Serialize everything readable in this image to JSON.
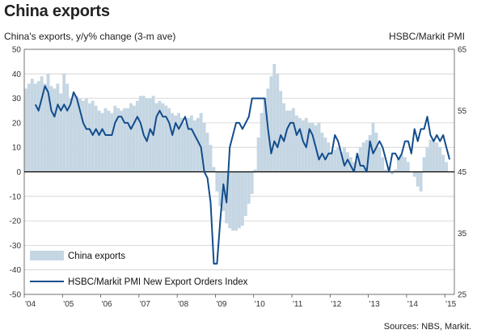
{
  "header": {
    "title": "China exports",
    "left_axis_label": "China's exports, y/y% change (3-m  ave)",
    "right_axis_label": "HSBC/Markit PMI",
    "source": "Sources: NBS, Markit."
  },
  "colors": {
    "bars": "#c5d6e3",
    "line": "#134d8c",
    "zero_line": "#000000",
    "grid": "#cfcfcf"
  },
  "chart_data": {
    "type": "bar+line",
    "x_range": [
      2004.0,
      2015.25
    ],
    "x_ticks": [
      "'04",
      "'05",
      "'06",
      "'07",
      "'08",
      "'09",
      "'10",
      "'11",
      "'12",
      "'13",
      "'14",
      "'15"
    ],
    "left_axis": {
      "range": [
        -50,
        50
      ],
      "ticks": [
        "50",
        "40",
        "30",
        "20",
        "10",
        "0",
        "-10",
        "-20",
        "-30",
        "-40",
        "-50"
      ]
    },
    "right_axis": {
      "range": [
        25,
        65
      ],
      "ticks": [
        "65",
        "55",
        "45",
        "35",
        "25"
      ]
    },
    "legend": {
      "bars": "China exports",
      "line": "HSBC/Markit PMI New Export Orders Index",
      "position": "bottom-left"
    },
    "series": [
      {
        "name": "China exports",
        "axis": "left",
        "kind": "bar",
        "x": [
          2004.0,
          2004.0833,
          2004.1667,
          2004.25,
          2004.3333,
          2004.4167,
          2004.5,
          2004.5833,
          2004.6667,
          2004.75,
          2004.8333,
          2004.9167,
          2005.0,
          2005.0833,
          2005.1667,
          2005.25,
          2005.3333,
          2005.4167,
          2005.5,
          2005.5833,
          2005.6667,
          2005.75,
          2005.8333,
          2005.9167,
          2006.0,
          2006.0833,
          2006.1667,
          2006.25,
          2006.3333,
          2006.4167,
          2006.5,
          2006.5833,
          2006.6667,
          2006.75,
          2006.8333,
          2006.9167,
          2007.0,
          2007.0833,
          2007.1667,
          2007.25,
          2007.3333,
          2007.4167,
          2007.5,
          2007.5833,
          2007.6667,
          2007.75,
          2007.8333,
          2007.9167,
          2008.0,
          2008.0833,
          2008.1667,
          2008.25,
          2008.3333,
          2008.4167,
          2008.5,
          2008.5833,
          2008.6667,
          2008.75,
          2008.8333,
          2008.9167,
          2009.0,
          2009.0833,
          2009.1667,
          2009.25,
          2009.3333,
          2009.4167,
          2009.5,
          2009.5833,
          2009.6667,
          2009.75,
          2009.8333,
          2009.9167,
          2010.0,
          2010.0833,
          2010.1667,
          2010.25,
          2010.3333,
          2010.4167,
          2010.5,
          2010.5833,
          2010.6667,
          2010.75,
          2010.8333,
          2010.9167,
          2011.0,
          2011.0833,
          2011.1667,
          2011.25,
          2011.3333,
          2011.4167,
          2011.5,
          2011.5833,
          2011.6667,
          2011.75,
          2011.8333,
          2011.9167,
          2012.0,
          2012.0833,
          2012.1667,
          2012.25,
          2012.3333,
          2012.4167,
          2012.5,
          2012.5833,
          2012.6667,
          2012.75,
          2012.8333,
          2012.9167,
          2013.0,
          2013.0833,
          2013.1667,
          2013.25,
          2013.3333,
          2013.4167,
          2013.5,
          2013.5833,
          2013.6667,
          2013.75,
          2013.8333,
          2013.9167,
          2014.0,
          2014.0833,
          2014.1667,
          2014.25,
          2014.3333,
          2014.4167,
          2014.5,
          2014.5833,
          2014.6667,
          2014.75,
          2014.8333,
          2014.9167,
          2015.0
        ],
        "values": [
          34,
          36,
          38,
          36,
          37,
          39,
          36,
          40,
          35,
          34,
          36,
          32,
          40,
          36,
          30,
          32,
          31,
          30,
          29,
          30,
          28,
          29,
          27,
          25,
          24,
          26,
          25,
          24,
          27,
          26,
          25,
          26,
          26,
          28,
          27,
          29,
          31,
          31,
          30,
          30,
          31,
          28,
          29,
          28,
          27,
          26,
          24,
          23,
          24,
          22,
          20,
          22,
          23,
          21,
          22,
          24,
          20,
          16,
          11,
          2,
          -8,
          -14,
          -16,
          -21,
          -23,
          -24,
          -24,
          -23,
          -22,
          -18,
          -13,
          -9,
          1,
          14,
          24,
          30,
          34,
          39,
          44,
          40,
          33,
          28,
          25,
          25,
          26,
          23,
          22,
          21,
          22,
          20,
          20,
          19,
          20,
          16,
          14,
          12,
          8,
          9,
          10,
          8,
          10,
          8,
          6,
          4,
          6,
          10,
          12,
          13,
          15,
          20,
          16,
          10,
          6,
          1,
          0,
          -1,
          1,
          6,
          7,
          6,
          4,
          0,
          -2,
          -6,
          -8,
          6,
          10,
          13,
          13,
          12,
          10,
          7,
          4
        ]
      },
      {
        "name": "HSBC/Markit PMI New Export Orders Index",
        "axis": "right",
        "kind": "line",
        "x": [
          2004.25,
          2004.3333,
          2004.4167,
          2004.5,
          2004.5833,
          2004.6667,
          2004.75,
          2004.8333,
          2004.9167,
          2005.0,
          2005.0833,
          2005.1667,
          2005.25,
          2005.3333,
          2005.4167,
          2005.5,
          2005.5833,
          2005.6667,
          2005.75,
          2005.8333,
          2005.9167,
          2006.0,
          2006.0833,
          2006.1667,
          2006.25,
          2006.3333,
          2006.4167,
          2006.5,
          2006.5833,
          2006.6667,
          2006.75,
          2006.8333,
          2006.9167,
          2007.0,
          2007.0833,
          2007.1667,
          2007.25,
          2007.3333,
          2007.4167,
          2007.5,
          2007.5833,
          2007.6667,
          2007.75,
          2007.8333,
          2007.9167,
          2008.0,
          2008.0833,
          2008.1667,
          2008.25,
          2008.3333,
          2008.4167,
          2008.5,
          2008.5833,
          2008.6667,
          2008.75,
          2008.8333,
          2008.9167,
          2009.0,
          2009.0833,
          2009.1667,
          2009.25,
          2009.3333,
          2009.4167,
          2009.5,
          2009.5833,
          2009.6667,
          2009.75,
          2009.8333,
          2009.9167,
          2010.0,
          2010.0833,
          2010.1667,
          2010.25,
          2010.3333,
          2010.4167,
          2010.5,
          2010.5833,
          2010.6667,
          2010.75,
          2010.8333,
          2010.9167,
          2011.0,
          2011.0833,
          2011.1667,
          2011.25,
          2011.3333,
          2011.4167,
          2011.5,
          2011.5833,
          2011.6667,
          2011.75,
          2011.8333,
          2011.9167,
          2012.0,
          2012.0833,
          2012.1667,
          2012.25,
          2012.3333,
          2012.4167,
          2012.5,
          2012.5833,
          2012.6667,
          2012.75,
          2012.8333,
          2012.9167,
          2013.0,
          2013.0833,
          2013.1667,
          2013.25,
          2013.3333,
          2013.4167,
          2013.5,
          2013.5833,
          2013.6667,
          2013.75,
          2013.8333,
          2013.9167,
          2014.0,
          2014.0833,
          2014.1667,
          2014.25,
          2014.3333,
          2014.4167,
          2014.5,
          2014.5833,
          2014.6667,
          2014.75,
          2014.8333,
          2014.9167,
          2015.0,
          2015.0833
        ],
        "values": [
          56,
          55,
          57,
          59,
          58,
          55,
          54,
          56,
          55,
          56,
          55,
          56,
          58,
          57,
          55,
          53,
          52,
          52,
          51,
          52,
          51,
          52,
          51,
          51,
          51,
          53,
          54,
          54,
          53,
          53,
          52,
          53,
          54,
          53,
          51,
          50,
          52,
          51,
          54,
          55,
          54,
          54,
          53,
          51,
          53,
          52,
          53,
          54,
          52,
          52,
          51,
          50,
          49,
          45,
          44,
          40,
          30,
          30,
          37,
          43,
          40,
          49,
          51,
          53,
          53,
          52,
          53,
          54,
          57,
          57,
          57,
          57,
          57,
          52,
          48,
          50,
          49,
          51,
          50,
          52,
          53,
          53,
          51,
          52,
          50,
          49,
          52,
          51,
          49,
          47,
          48,
          47,
          48,
          48,
          51,
          50,
          48,
          46,
          47,
          46,
          45,
          48,
          46,
          46,
          45,
          50,
          48,
          49,
          50,
          49,
          47,
          45,
          48,
          48,
          47,
          48,
          50,
          50,
          48,
          52,
          50,
          52,
          52,
          54,
          51,
          50,
          51,
          50,
          51,
          49,
          47
        ]
      }
    ]
  }
}
